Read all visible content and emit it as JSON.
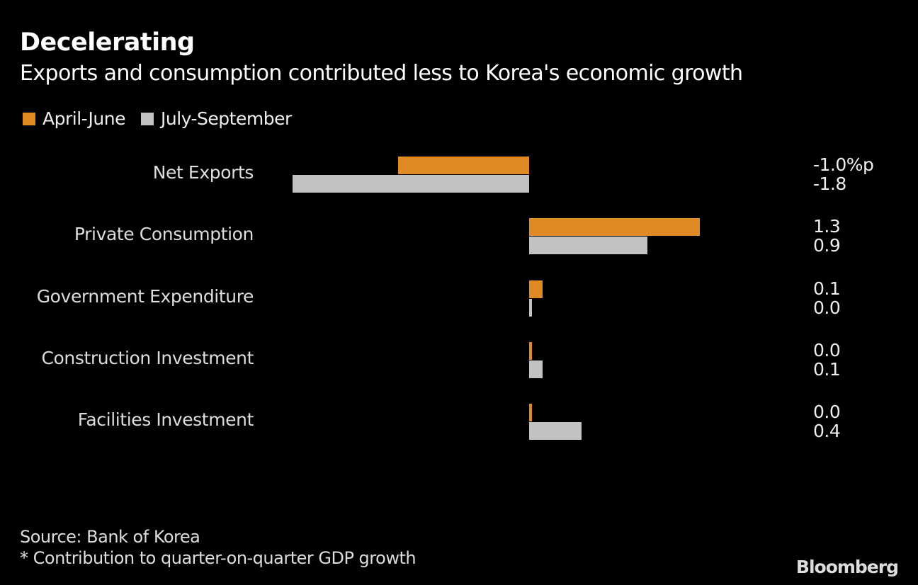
{
  "title": "Decelerating",
  "subtitle": "Exports and consumption contributed less to Korea's economic growth",
  "colors": {
    "april_june": "#e08a24",
    "july_september": "#c2c2c2",
    "background": "#000000"
  },
  "chart_data": {
    "type": "bar",
    "orientation": "horizontal",
    "categories": [
      "Net Exports",
      "Private Consumption",
      "Government Expenditure",
      "Construction Investment",
      "Facilities Investment"
    ],
    "series": [
      {
        "name": "April-June",
        "values": [
          -1.0,
          1.3,
          0.1,
          0.0,
          0.0
        ],
        "labels": [
          "-1.0%p",
          "1.3",
          "0.1",
          "0.0",
          "0.0"
        ]
      },
      {
        "name": "July-September",
        "values": [
          -1.8,
          0.9,
          0.0,
          0.1,
          0.4
        ],
        "labels": [
          "-1.8",
          "0.9",
          "0.0",
          "0.1",
          "0.4"
        ]
      }
    ],
    "unit": "%p",
    "legend": "top-left",
    "grid": false
  },
  "footer": {
    "source": "Source: Bank of Korea",
    "note": "* Contribution to quarter-on-quarter GDP growth",
    "logo": "Bloomberg"
  }
}
